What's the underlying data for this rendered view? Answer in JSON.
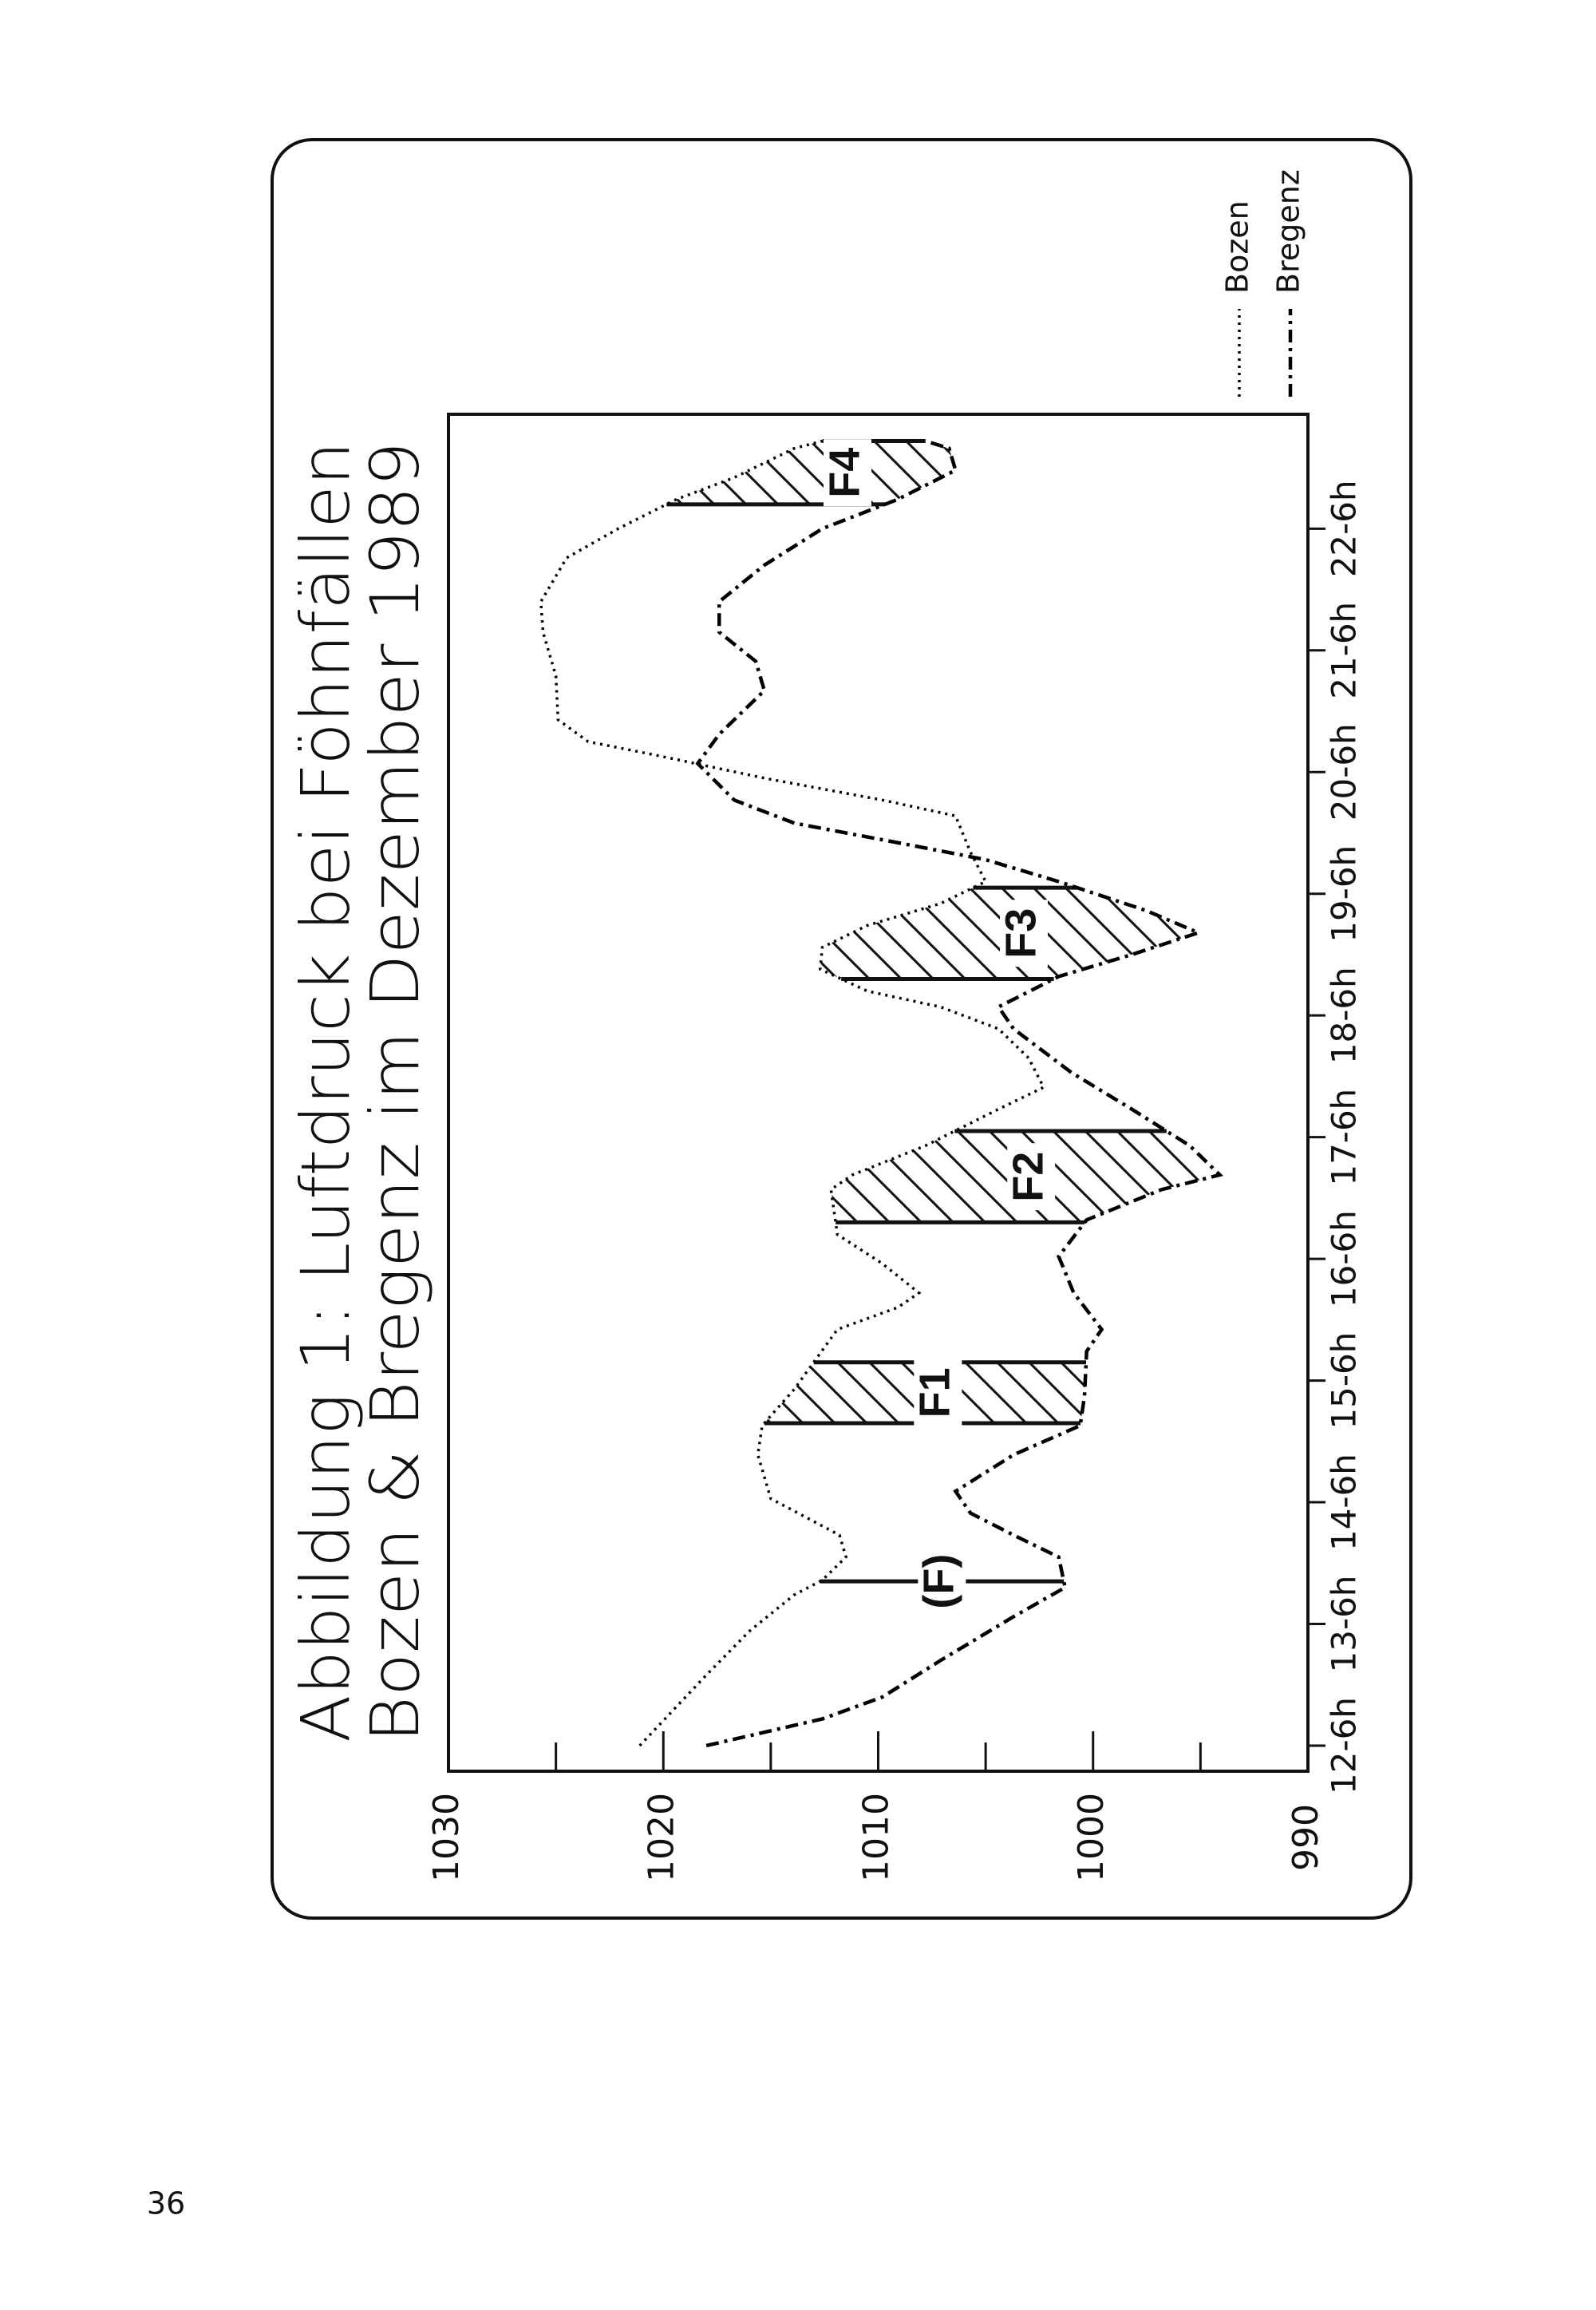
{
  "page_number": "36",
  "chart_data": {
    "type": "line",
    "title": "Abbildung 1: Luftdruck bei Föhnfällen",
    "subtitle": "Bozen & Bregenz im Dezember 1989",
    "xlim": [
      11.79,
      22.94
    ],
    "xticks": [
      {
        "value": 12,
        "label": "12-6h"
      },
      {
        "value": 13,
        "label": "13-6h"
      },
      {
        "value": 14,
        "label": "14-6h"
      },
      {
        "value": 15,
        "label": "15-6h"
      },
      {
        "value": 16,
        "label": "16-6h"
      },
      {
        "value": 17,
        "label": "17-6h"
      },
      {
        "value": 18,
        "label": "18-6h"
      },
      {
        "value": 19,
        "label": "19-6h"
      },
      {
        "value": 20,
        "label": "20-6h"
      },
      {
        "value": 21,
        "label": "21-6h"
      },
      {
        "value": 22,
        "label": "22-6h"
      }
    ],
    "ylim": [
      990,
      1030
    ],
    "yticks": [
      990,
      1000,
      1010,
      1020,
      1030
    ],
    "yminorticks": [
      995,
      1005,
      1015,
      1025
    ],
    "series": [
      {
        "name": "Bozen",
        "color": "#000000",
        "line_style": "dotted",
        "x": [
          12,
          12.58,
          12.94,
          13.24,
          13.36,
          13.55,
          13.73,
          14.03,
          14.39,
          14.63,
          14.93,
          15.42,
          15.6,
          15.72,
          15.96,
          16.2,
          16.57,
          16.69,
          16.93,
          17.23,
          17.41,
          17.65,
          17.89,
          18.07,
          18.2,
          18.38,
          18.56,
          18.74,
          18.92,
          19.1,
          19.34,
          19.64,
          19.77,
          19.95,
          20.13,
          20.25,
          20.43,
          20.79,
          21.15,
          21.4,
          21.76,
          22,
          22.24,
          22.42,
          22.66,
          22.72
        ],
        "values": [
          1021.1,
          1018.0,
          1016.0,
          1013.9,
          1012.6,
          1011.5,
          1011.8,
          1015.0,
          1015.6,
          1015.4,
          1013.9,
          1011.9,
          1009.1,
          1008.1,
          1009.8,
          1011.9,
          1012.2,
          1011.2,
          1007.8,
          1004.4,
          1002.3,
          1003.0,
          1004.4,
          1007.1,
          1010.5,
          1012.7,
          1012.6,
          1010.5,
          1007.1,
          1005.0,
          1005.7,
          1006.4,
          1009.8,
          1015.3,
          1020.1,
          1023.5,
          1024.9,
          1025.0,
          1025.6,
          1025.7,
          1024.5,
          1022.1,
          1019.4,
          1016.7,
          1013.9,
          1012.6
        ]
      },
      {
        "name": "Bregenz",
        "color": "#000000",
        "line_style": "dashdot",
        "x": [
          12,
          12.22,
          12.4,
          12.7,
          13.06,
          13.3,
          13.55,
          13.73,
          13.91,
          14.09,
          14.39,
          14.63,
          14.87,
          15.24,
          15.42,
          15.72,
          16.02,
          16.32,
          16.57,
          16.69,
          16.93,
          17.23,
          17.53,
          17.89,
          18.07,
          18.32,
          18.5,
          18.68,
          18.86,
          19.1,
          19.28,
          19.4,
          19.58,
          19.77,
          20.07,
          20.31,
          20.67,
          20.91,
          21.15,
          21.4,
          21.7,
          22,
          22.24,
          22.48,
          22.66,
          22.72
        ],
        "values": [
          1018.0,
          1012.6,
          1009.8,
          1007.1,
          1003.7,
          1001.3,
          1001.6,
          1003.7,
          1005.7,
          1006.4,
          1003.7,
          1000.6,
          1000.4,
          1000.3,
          999.6,
          1000.9,
          1001.6,
          1000.3,
          996.8,
          994.1,
          995.5,
          998.2,
          1001.0,
          1003.7,
          1004.4,
          1001.6,
          998.2,
          995.1,
          997.5,
          1001.6,
          1005.0,
          1008.5,
          1013.9,
          1016.7,
          1018.4,
          1017.4,
          1015.3,
          1015.7,
          1017.4,
          1017.4,
          1015.3,
          1012.6,
          1009.1,
          1006.4,
          1006.7,
          1007.8
        ]
      }
    ],
    "periods": [
      {
        "label": "(F)",
        "start": 13.35,
        "end": 13.35
      },
      {
        "label": "F1",
        "start": 14.65,
        "end": 15.15
      },
      {
        "label": "F2",
        "start": 16.3,
        "end": 17.05
      },
      {
        "label": "F3",
        "start": 18.3,
        "end": 19.05
      },
      {
        "label": "F4",
        "start": 22.2,
        "end": 22.72
      }
    ]
  }
}
